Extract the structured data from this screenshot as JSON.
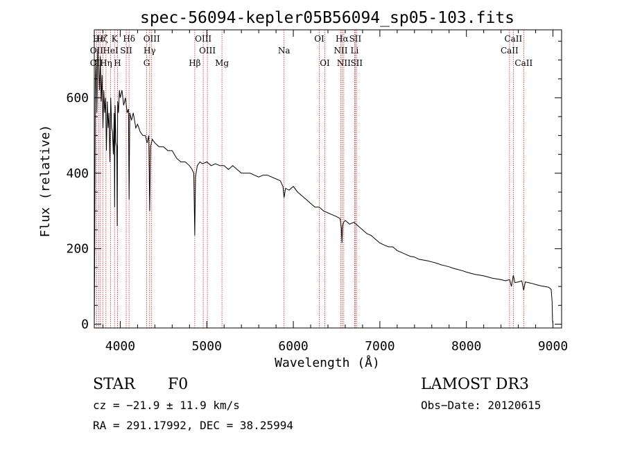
{
  "chart_data": {
    "type": "line",
    "title": "spec-56094-kepler05B56094_sp05-103.fits",
    "xlabel": "Wavelength (Å)",
    "ylabel": "Flux (relative)",
    "xlim": [
      3700,
      9100
    ],
    "ylim": [
      -10,
      780
    ],
    "xticks": [
      4000,
      5000,
      6000,
      7000,
      8000,
      9000
    ],
    "yticks": [
      0,
      200,
      400,
      600
    ],
    "series": [
      {
        "name": "flux",
        "x": [
          3700,
          3705,
          3712,
          3720,
          3730,
          3740,
          3750,
          3760,
          3770,
          3780,
          3790,
          3800,
          3810,
          3820,
          3830,
          3840,
          3850,
          3860,
          3870,
          3880,
          3890,
          3900,
          3910,
          3920,
          3930,
          3935,
          3940,
          3950,
          3960,
          3965,
          3970,
          3980,
          3990,
          4000,
          4020,
          4040,
          4060,
          4080,
          4095,
          4102,
          4110,
          4130,
          4150,
          4180,
          4200,
          4230,
          4260,
          4290,
          4310,
          4330,
          4340,
          4350,
          4370,
          4400,
          4450,
          4500,
          4550,
          4600,
          4650,
          4700,
          4750,
          4800,
          4830,
          4850,
          4861,
          4870,
          4890,
          4920,
          4950,
          5000,
          5050,
          5100,
          5150,
          5200,
          5250,
          5300,
          5350,
          5400,
          5450,
          5500,
          5550,
          5600,
          5650,
          5700,
          5750,
          5800,
          5850,
          5880,
          5893,
          5910,
          5950,
          6000,
          6050,
          6100,
          6150,
          6200,
          6250,
          6300,
          6350,
          6400,
          6450,
          6500,
          6540,
          6555,
          6563,
          6570,
          6580,
          6600,
          6650,
          6700,
          6750,
          6800,
          6850,
          6900,
          6950,
          7000,
          7050,
          7100,
          7150,
          7200,
          7250,
          7300,
          7350,
          7400,
          7450,
          7500,
          7550,
          7600,
          7650,
          7700,
          7750,
          7800,
          7850,
          7900,
          7950,
          8000,
          8050,
          8100,
          8150,
          8200,
          8250,
          8300,
          8350,
          8400,
          8450,
          8500,
          8520,
          8542,
          8560,
          8600,
          8640,
          8662,
          8680,
          8720,
          8760,
          8800,
          8850,
          8900,
          8950,
          8980,
          8990,
          8995,
          9000
        ],
        "values": [
          3,
          180,
          640,
          700,
          560,
          730,
          680,
          620,
          710,
          590,
          660,
          520,
          620,
          560,
          600,
          460,
          590,
          520,
          560,
          430,
          600,
          520,
          510,
          450,
          560,
          310,
          580,
          480,
          470,
          260,
          590,
          560,
          620,
          600,
          620,
          580,
          600,
          560,
          570,
          330,
          560,
          540,
          560,
          520,
          530,
          510,
          500,
          500,
          480,
          500,
          300,
          470,
          490,
          480,
          470,
          470,
          460,
          460,
          440,
          430,
          430,
          420,
          410,
          400,
          235,
          390,
          420,
          430,
          425,
          430,
          420,
          425,
          420,
          420,
          410,
          420,
          410,
          400,
          400,
          400,
          395,
          390,
          395,
          395,
          390,
          385,
          380,
          365,
          335,
          360,
          355,
          365,
          350,
          340,
          330,
          320,
          310,
          310,
          300,
          295,
          290,
          285,
          280,
          255,
          215,
          260,
          270,
          275,
          265,
          270,
          260,
          250,
          240,
          235,
          225,
          215,
          210,
          205,
          205,
          195,
          190,
          185,
          180,
          178,
          172,
          170,
          168,
          165,
          162,
          158,
          155,
          152,
          148,
          145,
          142,
          138,
          135,
          132,
          130,
          128,
          125,
          122,
          120,
          118,
          115,
          118,
          100,
          130,
          110,
          112,
          115,
          90,
          112,
          110,
          108,
          105,
          102,
          100,
          98,
          92,
          60,
          10,
          2
        ]
      }
    ],
    "line_labels": [
      {
        "text": "Hε",
        "wl": 3750,
        "row": 1
      },
      {
        "text": "Hζ",
        "wl": 3790,
        "row": 1
      },
      {
        "text": "K",
        "wl": 3934,
        "row": 1
      },
      {
        "text": "Hδ",
        "wl": 4102,
        "row": 1
      },
      {
        "text": "OIII",
        "wl": 4363,
        "row": 1
      },
      {
        "text": "OIII",
        "wl": 4959,
        "row": 1
      },
      {
        "text": "OI",
        "wl": 6300,
        "row": 1
      },
      {
        "text": "Hα",
        "wl": 6563,
        "row": 1
      },
      {
        "text": "SII",
        "wl": 6716,
        "row": 1
      },
      {
        "text": "CaII",
        "wl": 8542,
        "row": 1
      },
      {
        "text": "OII",
        "wl": 3727,
        "row": 2
      },
      {
        "text": "HeI",
        "wl": 3889,
        "row": 2
      },
      {
        "text": "SII",
        "wl": 4069,
        "row": 2
      },
      {
        "text": "Hγ",
        "wl": 4340,
        "row": 2
      },
      {
        "text": "OIII",
        "wl": 5007,
        "row": 2
      },
      {
        "text": "Na",
        "wl": 5893,
        "row": 2
      },
      {
        "text": "NII",
        "wl": 6548,
        "row": 2
      },
      {
        "text": "Li",
        "wl": 6708,
        "row": 2
      },
      {
        "text": "CaII",
        "wl": 8498,
        "row": 2
      },
      {
        "text": "OII",
        "wl": 3727,
        "row": 3
      },
      {
        "text": "Hη",
        "wl": 3835,
        "row": 3
      },
      {
        "text": "H",
        "wl": 3968,
        "row": 3
      },
      {
        "text": "G",
        "wl": 4305,
        "row": 3
      },
      {
        "text": "Hβ",
        "wl": 4861,
        "row": 3
      },
      {
        "text": "Mg",
        "wl": 5175,
        "row": 3
      },
      {
        "text": "OI",
        "wl": 6364,
        "row": 3
      },
      {
        "text": "NII",
        "wl": 6583,
        "row": 3
      },
      {
        "text": "SII",
        "wl": 6731,
        "row": 3
      },
      {
        "text": "CaII",
        "wl": 8662,
        "row": 3
      }
    ],
    "line_markers": [
      3727,
      3750,
      3771,
      3798,
      3835,
      3889,
      3934,
      3968,
      4069,
      4102,
      4305,
      4340,
      4363,
      4861,
      4959,
      5007,
      5175,
      5893,
      6300,
      6364,
      6548,
      6563,
      6583,
      6708,
      6716,
      6731,
      8498,
      8542,
      8662
    ],
    "colors": {
      "spectrum": "#000000",
      "markers": "#cc2222",
      "axes": "#000000"
    }
  },
  "info": {
    "object_type": "STAR",
    "subclass": "F0",
    "survey": "LAMOST DR3",
    "cz": "cz = −21.9 ± 11.9 km/s",
    "obs_date": "Obs−Date: 20120615",
    "coords": "RA = 291.17992, DEC =  38.25994"
  }
}
